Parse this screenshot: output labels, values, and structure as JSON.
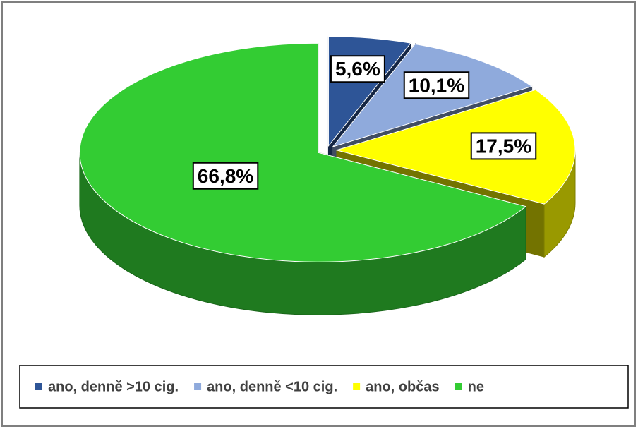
{
  "chart_data": {
    "type": "pie3d",
    "categories": [
      "ano, denně >10 cig.",
      "ano, denně <10 cig.",
      "ano, občas",
      "ne"
    ],
    "values": [
      5.6,
      10.1,
      17.5,
      66.8
    ],
    "value_labels": [
      "5,6%",
      "10,1%",
      "17,5%",
      "66,8%"
    ],
    "colors": [
      "#2e5597",
      "#8faadc",
      "#ffff00",
      "#33cc33"
    ],
    "legend": "bottom"
  }
}
